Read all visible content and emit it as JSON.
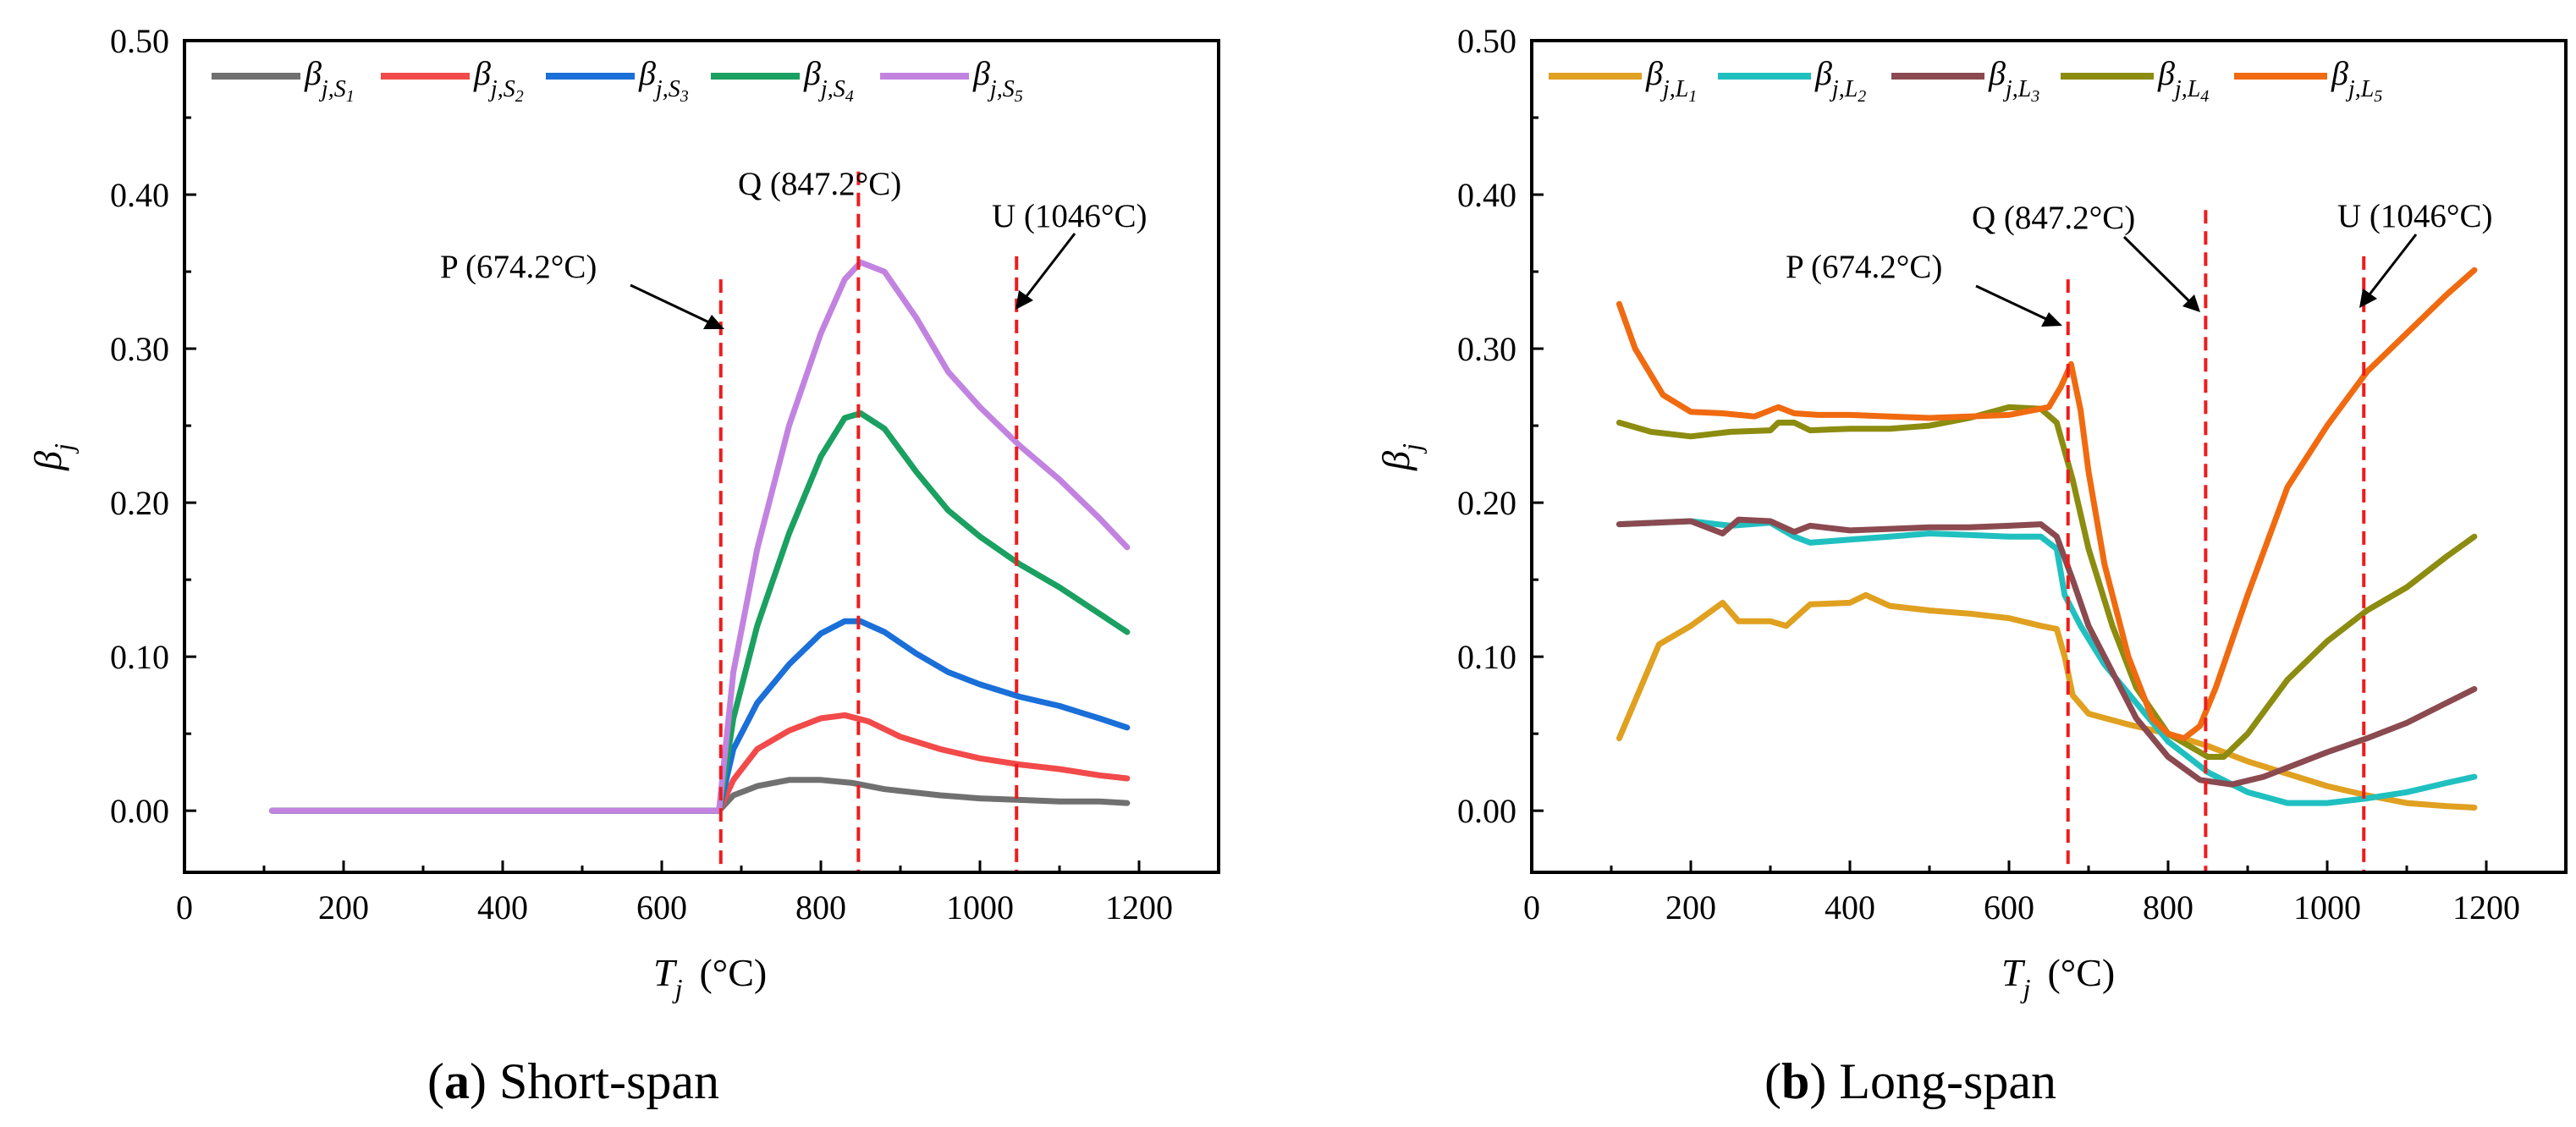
{
  "chart_data": [
    {
      "type": "line",
      "caption_letter": "a",
      "caption_text": " Short-span",
      "xlabel_main": "T",
      "xlabel_sub": "j",
      "xlabel_unit": "(°C)",
      "ylabel_main": "β",
      "ylabel_sub": "j",
      "xlim": [
        0,
        1300
      ],
      "ylim": [
        -0.04,
        0.5
      ],
      "xticks": [
        "0",
        "200",
        "400",
        "600",
        "800",
        "1000",
        "1200"
      ],
      "xtick_values": [
        0,
        200,
        400,
        600,
        800,
        1000,
        1200
      ],
      "yticks": [
        "0.00",
        "0.10",
        "0.20",
        "0.30",
        "0.40",
        "0.50"
      ],
      "ytick_values": [
        0,
        0.1,
        0.2,
        0.3,
        0.4,
        0.5
      ],
      "vlines": [
        {
          "label": "P (674.2°C)",
          "x": 674.2
        },
        {
          "label": "Q (847.2°C)",
          "x": 847.2
        },
        {
          "label": "U (1046°C)",
          "x": 1046
        }
      ],
      "series": [
        {
          "name": "β_{j,S1}",
          "main": "β",
          "sub": "j,S",
          "idx": "1",
          "color": "#707070",
          "x": [
            110,
            200,
            300,
            400,
            500,
            600,
            660,
            672,
            690,
            720,
            760,
            800,
            840,
            880,
            950,
            1000,
            1050,
            1100,
            1150,
            1185
          ],
          "y": [
            0,
            0,
            0,
            0,
            0,
            0,
            0,
            0,
            0.01,
            0.016,
            0.02,
            0.02,
            0.018,
            0.014,
            0.01,
            0.008,
            0.007,
            0.006,
            0.006,
            0.005
          ]
        },
        {
          "name": "β_{j,S2}",
          "main": "β",
          "sub": "j,S",
          "idx": "2",
          "color": "#f24a4a",
          "x": [
            110,
            300,
            500,
            660,
            672,
            690,
            720,
            760,
            800,
            830,
            860,
            900,
            950,
            1000,
            1050,
            1100,
            1150,
            1185
          ],
          "y": [
            0,
            0,
            0,
            0,
            0,
            0.02,
            0.04,
            0.052,
            0.06,
            0.062,
            0.058,
            0.048,
            0.04,
            0.034,
            0.03,
            0.027,
            0.023,
            0.021
          ]
        },
        {
          "name": "β_{j,S3}",
          "main": "β",
          "sub": "j,S",
          "idx": "3",
          "color": "#1a6fd8",
          "x": [
            110,
            300,
            500,
            660,
            672,
            690,
            720,
            760,
            800,
            830,
            850,
            880,
            920,
            960,
            1000,
            1050,
            1100,
            1150,
            1185
          ],
          "y": [
            0,
            0,
            0,
            0,
            0,
            0.04,
            0.07,
            0.095,
            0.115,
            0.123,
            0.123,
            0.116,
            0.102,
            0.09,
            0.082,
            0.074,
            0.068,
            0.06,
            0.054
          ]
        },
        {
          "name": "β_{j,S4}",
          "main": "β",
          "sub": "j,S",
          "idx": "4",
          "color": "#1aa060",
          "x": [
            110,
            300,
            500,
            660,
            672,
            690,
            720,
            760,
            800,
            830,
            850,
            880,
            920,
            960,
            1000,
            1050,
            1100,
            1150,
            1185
          ],
          "y": [
            0,
            0,
            0,
            0,
            0,
            0.06,
            0.12,
            0.18,
            0.23,
            0.255,
            0.258,
            0.248,
            0.22,
            0.195,
            0.178,
            0.16,
            0.145,
            0.128,
            0.116
          ]
        },
        {
          "name": "β_{j,S5}",
          "main": "β",
          "sub": "j,S",
          "idx": "5",
          "color": "#c283e0",
          "x": [
            110,
            300,
            500,
            660,
            672,
            690,
            720,
            760,
            800,
            830,
            850,
            880,
            920,
            960,
            1000,
            1050,
            1100,
            1150,
            1185
          ],
          "y": [
            0,
            0,
            0,
            0,
            0,
            0.09,
            0.17,
            0.25,
            0.31,
            0.345,
            0.356,
            0.35,
            0.32,
            0.285,
            0.262,
            0.237,
            0.215,
            0.19,
            0.171
          ]
        }
      ]
    },
    {
      "type": "line",
      "caption_letter": "b",
      "caption_text": " Long-span",
      "xlabel_main": "T",
      "xlabel_sub": "j",
      "xlabel_unit": "(°C)",
      "ylabel_main": "β",
      "ylabel_sub": "j",
      "xlim": [
        0,
        1300
      ],
      "ylim": [
        -0.04,
        0.5
      ],
      "xticks": [
        "0",
        "200",
        "400",
        "600",
        "800",
        "1000",
        "1200"
      ],
      "xtick_values": [
        0,
        200,
        400,
        600,
        800,
        1000,
        1200
      ],
      "yticks": [
        "0.00",
        "0.10",
        "0.20",
        "0.30",
        "0.40",
        "0.50"
      ],
      "ytick_values": [
        0,
        0.1,
        0.2,
        0.3,
        0.4,
        0.5
      ],
      "vlines": [
        {
          "label": "P (674.2°C)",
          "x": 674.2
        },
        {
          "label": "Q (847.2°C)",
          "x": 847.2
        },
        {
          "label": "U (1046°C)",
          "x": 1046
        }
      ],
      "series": [
        {
          "name": "β_{j,L1}",
          "main": "β",
          "sub": "j,L",
          "idx": "1",
          "color": "#e0a020",
          "x": [
            110,
            160,
            200,
            240,
            260,
            300,
            320,
            350,
            400,
            420,
            450,
            500,
            550,
            600,
            640,
            660,
            670,
            680,
            700,
            750,
            800,
            850,
            900,
            950,
            1000,
            1050,
            1100,
            1150,
            1185
          ],
          "y": [
            0.047,
            0.108,
            0.12,
            0.135,
            0.123,
            0.123,
            0.12,
            0.134,
            0.135,
            0.14,
            0.133,
            0.13,
            0.128,
            0.125,
            0.12,
            0.118,
            0.1,
            0.075,
            0.063,
            0.056,
            0.05,
            0.042,
            0.032,
            0.024,
            0.016,
            0.01,
            0.005,
            0.003,
            0.002
          ]
        },
        {
          "name": "β_{j,L2}",
          "main": "β",
          "sub": "j,L",
          "idx": "2",
          "color": "#20c0c0",
          "x": [
            110,
            200,
            250,
            300,
            330,
            350,
            400,
            450,
            500,
            550,
            600,
            640,
            660,
            670,
            690,
            720,
            760,
            800,
            850,
            900,
            950,
            1000,
            1050,
            1100,
            1150,
            1185
          ],
          "y": [
            0.186,
            0.188,
            0.185,
            0.187,
            0.178,
            0.174,
            0.176,
            0.178,
            0.18,
            0.179,
            0.178,
            0.178,
            0.17,
            0.14,
            0.12,
            0.095,
            0.07,
            0.045,
            0.025,
            0.012,
            0.005,
            0.005,
            0.008,
            0.012,
            0.018,
            0.022
          ]
        },
        {
          "name": "β_{j,L3}",
          "main": "β",
          "sub": "j,L",
          "idx": "3",
          "color": "#8a4a50",
          "x": [
            110,
            200,
            240,
            260,
            300,
            330,
            350,
            400,
            450,
            500,
            550,
            600,
            640,
            660,
            680,
            700,
            730,
            760,
            800,
            840,
            880,
            920,
            960,
            1000,
            1050,
            1100,
            1150,
            1185
          ],
          "y": [
            0.186,
            0.188,
            0.18,
            0.189,
            0.188,
            0.181,
            0.185,
            0.182,
            0.183,
            0.184,
            0.184,
            0.185,
            0.186,
            0.178,
            0.15,
            0.12,
            0.09,
            0.06,
            0.035,
            0.02,
            0.017,
            0.022,
            0.03,
            0.038,
            0.047,
            0.057,
            0.07,
            0.079
          ]
        },
        {
          "name": "β_{j,L4}",
          "main": "β",
          "sub": "j,L",
          "idx": "4",
          "color": "#8c8c10",
          "x": [
            110,
            150,
            200,
            250,
            300,
            310,
            330,
            350,
            400,
            450,
            500,
            550,
            600,
            640,
            660,
            680,
            700,
            730,
            760,
            800,
            850,
            870,
            900,
            950,
            1000,
            1050,
            1100,
            1150,
            1185
          ],
          "y": [
            0.252,
            0.246,
            0.243,
            0.246,
            0.247,
            0.252,
            0.252,
            0.247,
            0.248,
            0.248,
            0.25,
            0.255,
            0.262,
            0.261,
            0.252,
            0.215,
            0.17,
            0.12,
            0.08,
            0.05,
            0.035,
            0.035,
            0.05,
            0.085,
            0.11,
            0.13,
            0.145,
            0.165,
            0.178
          ]
        },
        {
          "name": "β_{j,L5}",
          "main": "β",
          "sub": "j,L",
          "idx": "5",
          "color": "#f06a10",
          "x": [
            110,
            130,
            165,
            200,
            240,
            280,
            310,
            330,
            360,
            400,
            450,
            500,
            550,
            600,
            650,
            665,
            678,
            690,
            700,
            720,
            750,
            780,
            800,
            820,
            840,
            860,
            880,
            900,
            950,
            1000,
            1050,
            1100,
            1150,
            1185
          ],
          "y": [
            0.329,
            0.3,
            0.27,
            0.259,
            0.258,
            0.256,
            0.262,
            0.258,
            0.257,
            0.257,
            0.256,
            0.255,
            0.256,
            0.257,
            0.262,
            0.275,
            0.29,
            0.26,
            0.22,
            0.16,
            0.1,
            0.06,
            0.05,
            0.047,
            0.055,
            0.08,
            0.11,
            0.14,
            0.21,
            0.25,
            0.285,
            0.31,
            0.335,
            0.351
          ]
        }
      ]
    }
  ]
}
